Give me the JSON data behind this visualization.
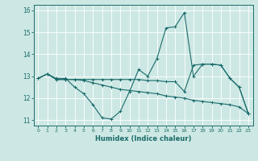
{
  "xlabel": "Humidex (Indice chaleur)",
  "bg_color": "#cde8e4",
  "line_color": "#1a6b6b",
  "grid_color": "#ffffff",
  "xlim": [
    -0.5,
    23.5
  ],
  "ylim": [
    10.75,
    16.25
  ],
  "yticks": [
    11,
    12,
    13,
    14,
    15,
    16
  ],
  "xticks": [
    0,
    1,
    2,
    3,
    4,
    5,
    6,
    7,
    8,
    9,
    10,
    11,
    12,
    13,
    14,
    15,
    16,
    17,
    18,
    19,
    20,
    21,
    22,
    23
  ],
  "series1_x": [
    0,
    1,
    2,
    3,
    4,
    5,
    6,
    7,
    8,
    9,
    10,
    11,
    12,
    13,
    14,
    15,
    16,
    17,
    18,
    19,
    20,
    21,
    22,
    23
  ],
  "series1_y": [
    12.9,
    13.1,
    12.9,
    12.9,
    12.5,
    12.2,
    11.7,
    11.1,
    11.05,
    11.4,
    12.3,
    13.3,
    13.0,
    13.8,
    15.2,
    15.25,
    15.9,
    13.0,
    13.55,
    13.55,
    13.5,
    12.9,
    12.5,
    11.3
  ],
  "series2_x": [
    0,
    1,
    2,
    3,
    4,
    5,
    6,
    7,
    8,
    9,
    10,
    11,
    12,
    13,
    14,
    15,
    16,
    17,
    18,
    19,
    20,
    21,
    22,
    23
  ],
  "series2_y": [
    12.9,
    13.1,
    12.85,
    12.85,
    12.85,
    12.85,
    12.85,
    12.85,
    12.85,
    12.85,
    12.85,
    12.85,
    12.8,
    12.8,
    12.75,
    12.75,
    12.3,
    13.5,
    13.55,
    13.55,
    13.5,
    12.9,
    12.5,
    11.3
  ],
  "series3_x": [
    0,
    1,
    2,
    3,
    4,
    5,
    6,
    7,
    8,
    9,
    10,
    11,
    12,
    13,
    14,
    15,
    16,
    17,
    18,
    19,
    20,
    21,
    22,
    23
  ],
  "series3_y": [
    12.9,
    13.1,
    12.85,
    12.85,
    12.85,
    12.8,
    12.7,
    12.6,
    12.5,
    12.4,
    12.35,
    12.3,
    12.25,
    12.2,
    12.1,
    12.05,
    12.0,
    11.9,
    11.85,
    11.8,
    11.75,
    11.7,
    11.6,
    11.3
  ]
}
